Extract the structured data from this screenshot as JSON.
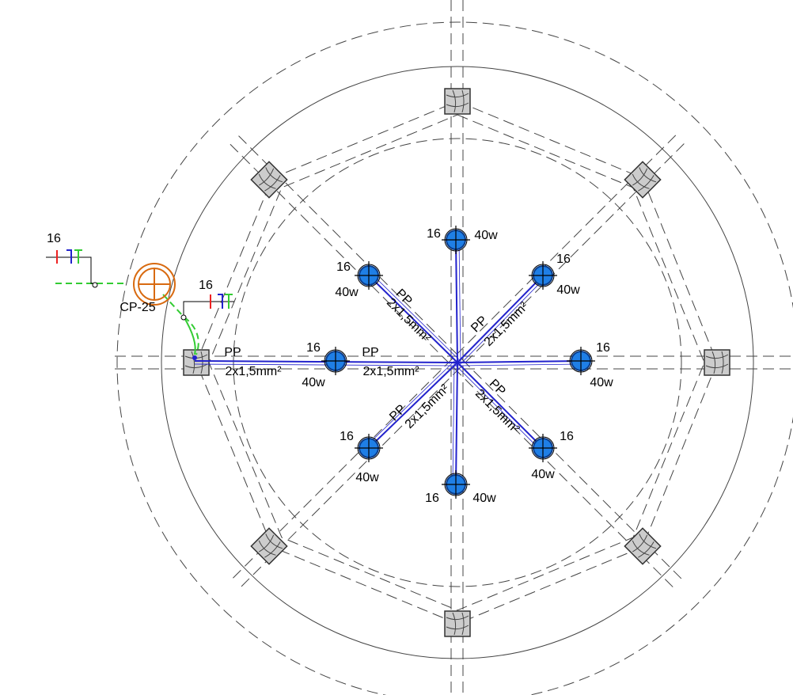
{
  "panel": {
    "label": "CP-25"
  },
  "switches": [
    {
      "label": "16"
    },
    {
      "label": "16"
    }
  ],
  "lamps": [
    {
      "circuit": "16",
      "power": "40w"
    },
    {
      "circuit": "16",
      "power": "40w"
    },
    {
      "circuit": "16",
      "power": "40w"
    },
    {
      "circuit": "16",
      "power": "40w"
    },
    {
      "circuit": "16",
      "power": "40w"
    },
    {
      "circuit": "16",
      "power": "40w"
    },
    {
      "circuit": "16",
      "power": "40w"
    },
    {
      "circuit": "16",
      "power": "40w"
    }
  ],
  "cables": [
    {
      "type": "PP",
      "section": "2x1,5mm²"
    },
    {
      "type": "PP",
      "section": "2x1,5mm²"
    },
    {
      "type": "PP",
      "section": "2x1,5mm²"
    },
    {
      "type": "PP",
      "section": "2x1,5mm²"
    },
    {
      "type": "PP",
      "section": "2x1,5mm²"
    },
    {
      "type": "PP",
      "section": "2x1,5mm²"
    }
  ]
}
